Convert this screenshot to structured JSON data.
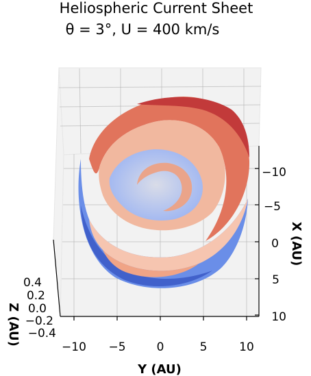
{
  "chart_data": {
    "type": "surface3d",
    "title_line1": "Heliospheric Current Sheet",
    "title_line2": "θ = 3°, U = 400 km/s",
    "xlabel": "Y (AU)",
    "ylabel": "X (AU)",
    "zlabel": "Z (AU)",
    "x_ticks": [
      "−10",
      "−5",
      "0",
      "5",
      "10"
    ],
    "y_ticks": [
      "−10",
      "−5",
      "0",
      "5",
      "10"
    ],
    "z_ticks": [
      "0.4",
      "0.2",
      "0.0",
      "−0.2",
      "−0.4"
    ],
    "xlim": [
      -11,
      11
    ],
    "ylim": [
      -11,
      11
    ],
    "zlim": [
      -0.5,
      0.5
    ],
    "grid": true,
    "colormap": "coolwarm",
    "colormap_low": "#3b4cc0",
    "colormap_mid": "#dddddd",
    "colormap_high": "#b40426"
  }
}
